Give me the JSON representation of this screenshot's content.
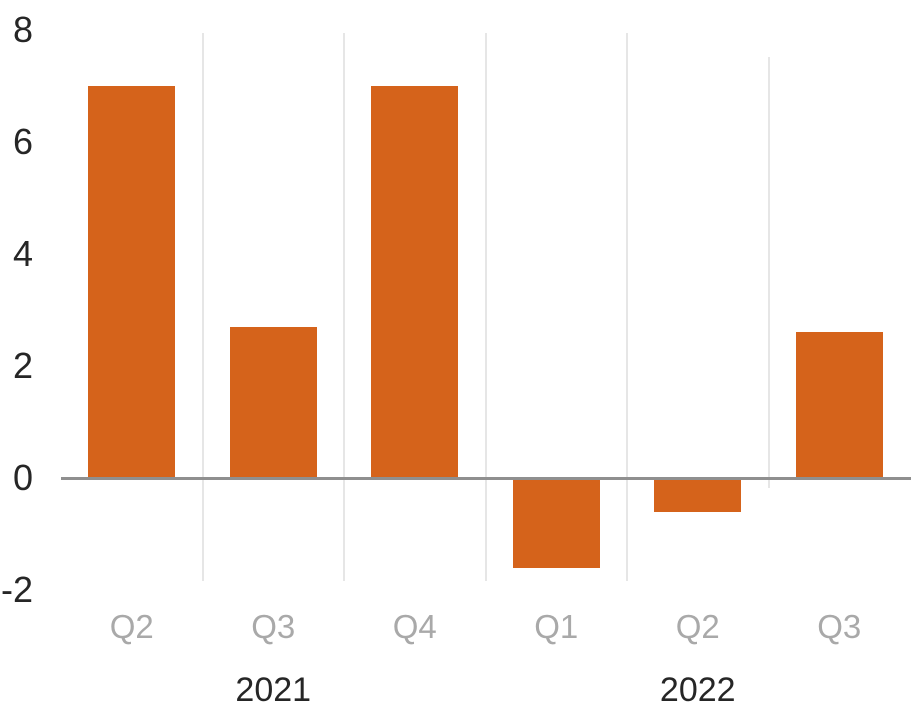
{
  "chart_data": {
    "type": "bar",
    "title": "",
    "xlabel": "",
    "ylabel": "",
    "categories": [
      "Q2",
      "Q3",
      "Q4",
      "Q1",
      "Q2",
      "Q3"
    ],
    "series": [
      {
        "name": "quarterly-value",
        "values": [
          7.0,
          2.7,
          7.0,
          -1.6,
          -0.6,
          2.6
        ]
      }
    ],
    "groups": [
      {
        "label": "2021",
        "span": [
          0,
          2
        ]
      },
      {
        "label": "2022",
        "span": [
          3,
          5
        ]
      }
    ],
    "yticks": [
      8,
      6,
      4,
      2,
      0,
      -2
    ],
    "ylim": [
      -2,
      8
    ],
    "grid": "vertical category separators only",
    "legend": "none",
    "colors": {
      "bar": "#d5631b",
      "axis_line": "#8f8f8f",
      "gridline": "#e6e6e6",
      "y_tick_label": "#262626",
      "category_label": "#a9a9a9",
      "year_label": "#262626",
      "background": "#ffffff"
    }
  }
}
